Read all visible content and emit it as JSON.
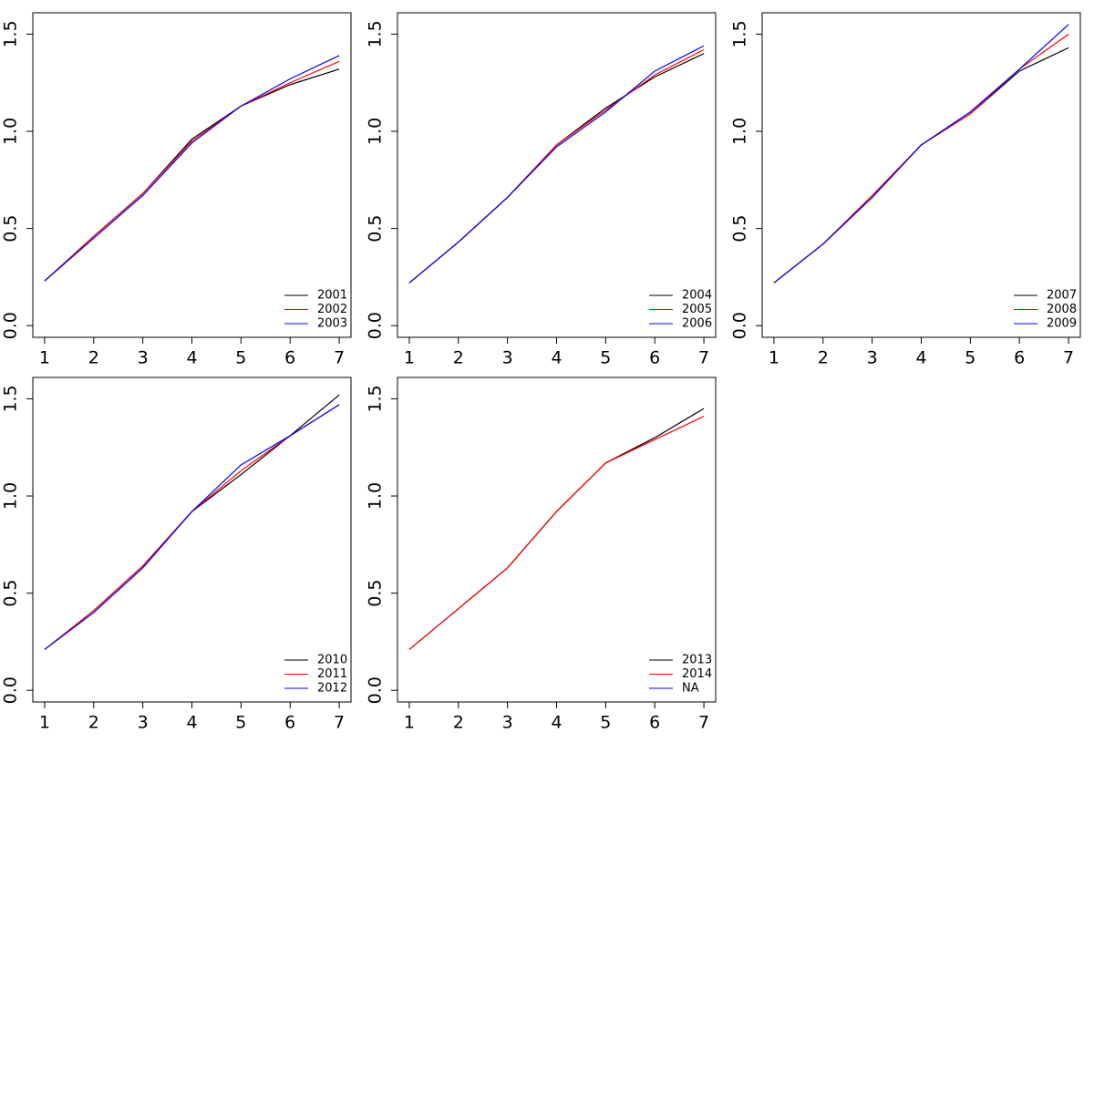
{
  "chart_data": [
    {
      "type": "line",
      "x": [
        1,
        2,
        3,
        4,
        5,
        6,
        7
      ],
      "xlim": [
        0.76,
        7.24
      ],
      "ylim": [
        -0.06,
        1.61
      ],
      "xticks": [
        1,
        2,
        3,
        4,
        5,
        6,
        7
      ],
      "yticks": [
        {
          "value": 0,
          "label": "0.0"
        },
        0.5,
        {
          "value": 1,
          "label": "1.0"
        },
        1.5
      ],
      "legend": "bottom-right",
      "series": [
        {
          "name": "2001",
          "color": "#000000",
          "values": [
            0.23,
            0.46,
            0.68,
            0.96,
            1.13,
            1.24,
            1.32
          ]
        },
        {
          "name": "2002",
          "color": "#ff0000",
          "values": [
            0.23,
            0.46,
            0.68,
            0.95,
            1.13,
            1.25,
            1.36
          ]
        },
        {
          "name": "2003",
          "color": "#0000ff",
          "values": [
            0.23,
            0.45,
            0.67,
            0.94,
            1.13,
            1.27,
            1.39
          ]
        }
      ]
    },
    {
      "type": "line",
      "x": [
        1,
        2,
        3,
        4,
        5,
        6,
        7
      ],
      "xlim": [
        0.76,
        7.24
      ],
      "ylim": [
        -0.06,
        1.61
      ],
      "xticks": [
        1,
        2,
        3,
        4,
        5,
        6,
        7
      ],
      "yticks": [
        {
          "value": 0,
          "label": "0.0"
        },
        0.5,
        {
          "value": 1,
          "label": "1.0"
        },
        1.5
      ],
      "legend": "bottom-right",
      "series": [
        {
          "name": "2004",
          "color": "#000000",
          "values": [
            0.22,
            0.43,
            0.66,
            0.93,
            1.12,
            1.28,
            1.4
          ]
        },
        {
          "name": "2005",
          "color": "#ff0000",
          "values": [
            0.22,
            0.43,
            0.66,
            0.93,
            1.11,
            1.29,
            1.42
          ]
        },
        {
          "name": "2006",
          "color": "#0000ff",
          "values": [
            0.22,
            0.43,
            0.66,
            0.92,
            1.1,
            1.31,
            1.44
          ]
        }
      ]
    },
    {
      "type": "line",
      "x": [
        1,
        2,
        3,
        4,
        5,
        6,
        7
      ],
      "xlim": [
        0.76,
        7.24
      ],
      "ylim": [
        -0.06,
        1.61
      ],
      "xticks": [
        1,
        2,
        3,
        4,
        5,
        6,
        7
      ],
      "yticks": [
        {
          "value": 0,
          "label": "0.0"
        },
        0.5,
        {
          "value": 1,
          "label": "1.0"
        },
        1.5
      ],
      "legend": "bottom-right",
      "series": [
        {
          "name": "2007",
          "color": "#000000",
          "values": [
            0.22,
            0.42,
            0.66,
            0.93,
            1.09,
            1.31,
            1.43
          ]
        },
        {
          "name": "2008",
          "color": "#ff0000",
          "values": [
            0.22,
            0.42,
            0.67,
            0.93,
            1.09,
            1.32,
            1.5
          ]
        },
        {
          "name": "2009",
          "color": "#0000ff",
          "values": [
            0.22,
            0.42,
            0.66,
            0.93,
            1.1,
            1.32,
            1.55
          ]
        }
      ]
    },
    {
      "type": "line",
      "x": [
        1,
        2,
        3,
        4,
        5,
        6,
        7
      ],
      "xlim": [
        0.76,
        7.24
      ],
      "ylim": [
        -0.06,
        1.61
      ],
      "xticks": [
        1,
        2,
        3,
        4,
        5,
        6,
        7
      ],
      "yticks": [
        {
          "value": 0,
          "label": "0.0"
        },
        0.5,
        {
          "value": 1,
          "label": "1.0"
        },
        1.5
      ],
      "legend": "bottom-right",
      "series": [
        {
          "name": "2010",
          "color": "#000000",
          "values": [
            0.21,
            0.41,
            0.64,
            0.92,
            1.11,
            1.31,
            1.52
          ]
        },
        {
          "name": "2011",
          "color": "#ff0000",
          "values": [
            0.21,
            0.41,
            0.64,
            0.92,
            1.13,
            1.31,
            1.47
          ]
        },
        {
          "name": "2012",
          "color": "#0000ff",
          "values": [
            0.21,
            0.4,
            0.63,
            0.92,
            1.16,
            1.31,
            1.47
          ]
        }
      ]
    },
    {
      "type": "line",
      "x": [
        1,
        2,
        3,
        4,
        5,
        6,
        7
      ],
      "xlim": [
        0.76,
        7.24
      ],
      "ylim": [
        -0.06,
        1.61
      ],
      "xticks": [
        1,
        2,
        3,
        4,
        5,
        6,
        7
      ],
      "yticks": [
        {
          "value": 0,
          "label": "0.0"
        },
        0.5,
        {
          "value": 1,
          "label": "1.0"
        },
        1.5
      ],
      "legend": "bottom-right",
      "series": [
        {
          "name": "2013",
          "color": "#000000",
          "values": [
            0.21,
            0.42,
            0.63,
            0.92,
            1.17,
            1.3,
            1.45
          ]
        },
        {
          "name": "2014",
          "color": "#ff0000",
          "values": [
            0.21,
            0.42,
            0.63,
            0.92,
            1.17,
            1.29,
            1.41
          ]
        },
        {
          "name": "NA",
          "color": "#0000ff",
          "values": [
            null,
            null,
            null,
            null,
            null,
            null,
            null
          ]
        }
      ]
    }
  ]
}
